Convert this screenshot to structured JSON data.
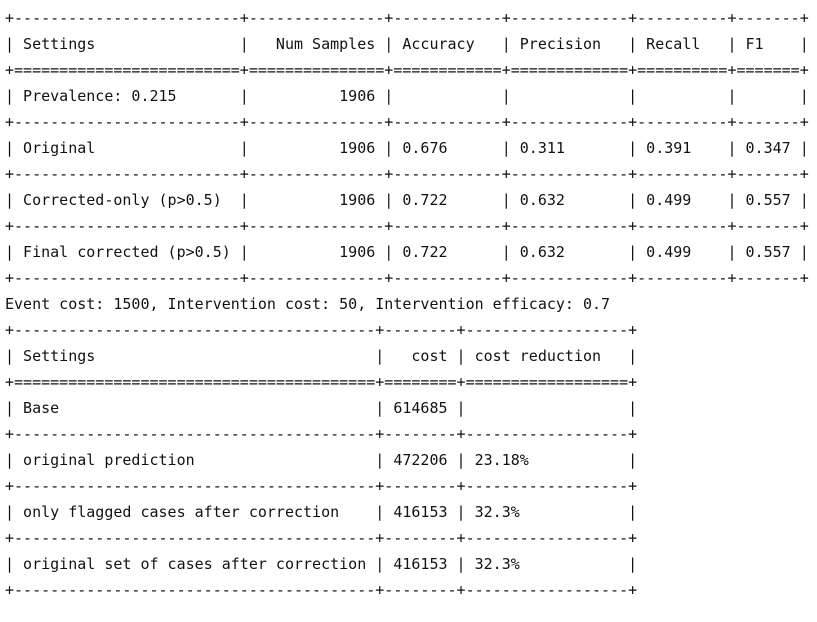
{
  "metrics_table": {
    "columns": [
      {
        "label": "Settings",
        "width": 25,
        "align": "left"
      },
      {
        "label": "Num Samples",
        "width": 15,
        "align": "right"
      },
      {
        "label": "Accuracy",
        "width": 12,
        "align": "left"
      },
      {
        "label": "Precision",
        "width": 13,
        "align": "left"
      },
      {
        "label": "Recall",
        "width": 10,
        "align": "left"
      },
      {
        "label": "F1",
        "width": 7,
        "align": "left"
      }
    ],
    "rows": [
      [
        "Prevalence: 0.215",
        "1906",
        "",
        "",
        "",
        ""
      ],
      [
        "Original",
        "1906",
        "0.676",
        "0.311",
        "0.391",
        "0.347"
      ],
      [
        "Corrected-only (p>0.5)",
        "1906",
        "0.722",
        "0.632",
        "0.499",
        "0.557"
      ],
      [
        "Final corrected (p>0.5)",
        "1906",
        "0.722",
        "0.632",
        "0.499",
        "0.557"
      ]
    ]
  },
  "cost_note": "Event cost: 1500, Intervention cost: 50, Intervention efficacy: 0.7",
  "cost_table": {
    "columns": [
      {
        "label": "Settings",
        "width": 40,
        "align": "left"
      },
      {
        "label": "cost",
        "width": 8,
        "align": "right"
      },
      {
        "label": "cost reduction",
        "width": 18,
        "align": "left"
      }
    ],
    "rows": [
      [
        "Base",
        "614685",
        ""
      ],
      [
        "original prediction",
        "472206",
        "23.18%"
      ],
      [
        "only flagged cases after correction",
        "416153",
        "32.3%"
      ],
      [
        "original set of cases after correction",
        "416153",
        "32.3%"
      ]
    ]
  }
}
